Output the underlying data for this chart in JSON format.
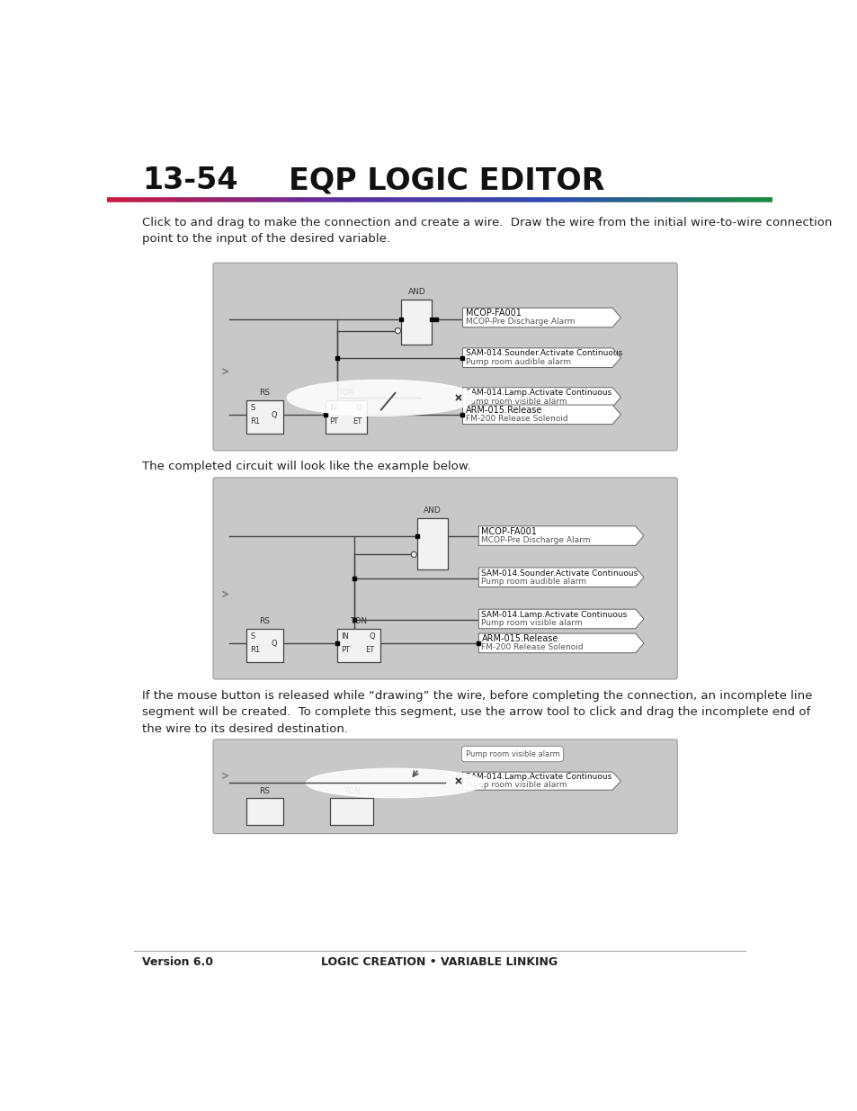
{
  "title_num": "13-54",
  "title_text": "EQP LOGIC EDITOR",
  "page_bg": "#ffffff",
  "footer_text_left": "Version 6.0",
  "footer_text_center": "LOGIC CREATION • VARIABLE LINKING",
  "paragraph1": "Click to and drag to make the connection and create a wire.  Draw the wire from the initial wire-to-wire connection\npoint to the input of the desired variable.",
  "paragraph2": "The completed circuit will look like the example below.",
  "paragraph3": "If the mouse button is released while “drawing” the wire, before completing the connection, an incomplete line\nsegment will be created.  To complete this segment, use the arrow tool to click and drag the incomplete end of\nthe wire to its desired destination.",
  "diag_bg": "#cccccc",
  "diag_bg2": "#e0e0e0",
  "block_fill": "#f2f2f2",
  "block_stroke": "#444444",
  "wire_color": "#444444",
  "label_fill": "#ffffff",
  "label_stroke": "#666666",
  "text_main": "#111111",
  "text_sub": "#555555"
}
